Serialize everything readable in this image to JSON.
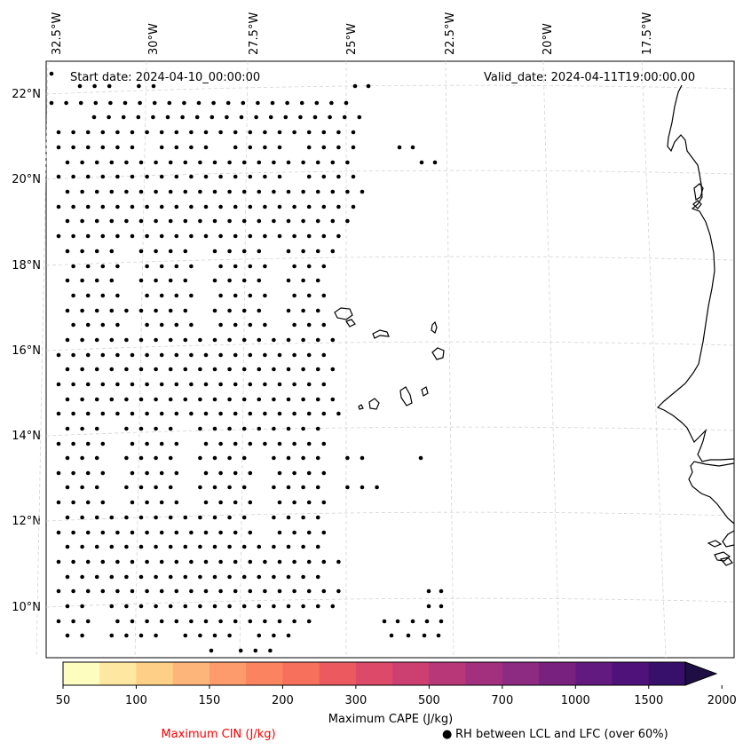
{
  "map": {
    "start_date": "Start date: 2024-04-10_00:00:00",
    "valid_date": "Valid_date: 2024-04-11T19:00:00.00",
    "lon_labels": [
      "32.5°W",
      "30°W",
      "27.5°W",
      "25°W",
      "22.5°W",
      "20°W",
      "17.5°W"
    ],
    "lat_labels": [
      "22°N",
      "20°N",
      "18°N",
      "16°N",
      "14°N",
      "12°N",
      "10°N"
    ]
  },
  "colorbar": {
    "label": "Maximum CAPE (J/kg)",
    "ticks": [
      "50",
      "100",
      "150",
      "200",
      "300",
      "500",
      "700",
      "1000",
      "1500",
      "2000"
    ],
    "colors": [
      "#fcfdbf",
      "#fee7a0",
      "#fecf86",
      "#feb57a",
      "#fd9b6c",
      "#fb8360",
      "#f6705c",
      "#ec5a5f",
      "#dd4968",
      "#cc3f71",
      "#b73779",
      "#a3307e",
      "#8d2a81",
      "#78217e",
      "#631a80",
      "#4e127a",
      "#36106b",
      "#1f0e44"
    ]
  },
  "legend": {
    "cin_label": "Maximum CIN (J/kg)",
    "cin_color": "#ff0000",
    "rh_marker": "●",
    "rh_label": "RH between LCL and LFC (over 60%)"
  }
}
